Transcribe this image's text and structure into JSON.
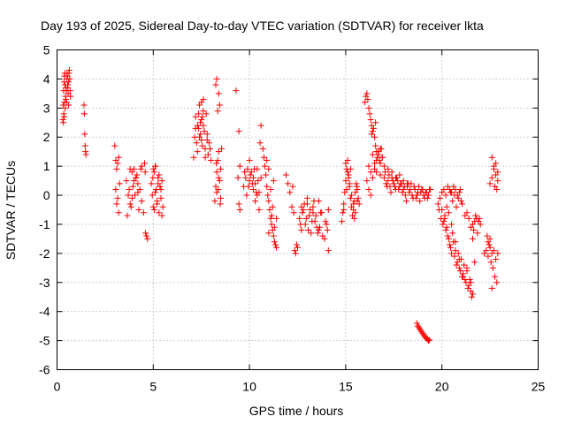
{
  "chart_data": {
    "type": "scatter",
    "title": "Day 193 of 2025, Sidereal Day-to-day VTEC variation (SDTVAR) for receiver lkta",
    "xlabel": "GPS time / hours",
    "ylabel": "SDTVAR / TECUs",
    "xlim": [
      0,
      25
    ],
    "ylim": [
      -6,
      5
    ],
    "xticks": [
      "0",
      "5",
      "10",
      "15",
      "20",
      "25"
    ],
    "yticks": [
      "-6",
      "-5",
      "-4",
      "-3",
      "-2",
      "-1",
      "0",
      "1",
      "2",
      "3",
      "4",
      "5"
    ],
    "grid": true,
    "marker": "+",
    "color": "#ff0000",
    "series": [
      {
        "name": "lkta",
        "x": [
          0.3,
          0.32,
          0.34,
          0.36,
          0.38,
          0.4,
          0.42,
          0.44,
          0.46,
          0.48,
          0.5,
          0.52,
          0.54,
          0.56,
          0.58,
          0.6,
          0.62,
          0.64,
          0.66,
          0.68,
          0.7,
          0.35,
          0.38,
          0.42,
          0.46,
          0.5,
          0.55,
          0.6,
          0.33,
          0.37,
          1.4,
          1.42,
          1.44,
          1.46,
          1.48,
          1.5,
          3.0,
          3.05,
          3.1,
          3.15,
          3.2,
          3.05,
          3.1,
          3.2,
          3.25,
          3.15,
          3.6,
          3.7,
          3.8,
          3.9,
          4.0,
          4.1,
          4.2,
          4.3,
          4.4,
          4.5,
          3.75,
          3.85,
          3.95,
          4.05,
          4.15,
          4.25,
          4.35,
          3.65,
          3.8,
          4.0,
          4.2,
          4.4,
          3.9,
          4.1,
          4.6,
          4.65,
          4.7,
          4.55,
          4.58,
          4.9,
          4.95,
          5.0,
          5.05,
          5.1,
          5.15,
          5.2,
          5.25,
          5.3,
          5.35,
          5.4,
          5.45,
          5.5,
          5.0,
          5.1,
          5.2,
          5.3,
          5.4,
          5.05,
          5.25,
          5.45,
          4.98,
          5.12,
          7.1,
          7.15,
          7.2,
          7.25,
          7.3,
          7.35,
          7.4,
          7.45,
          7.5,
          7.55,
          7.6,
          7.65,
          7.7,
          7.75,
          7.8,
          7.85,
          7.9,
          7.95,
          8.0,
          7.3,
          7.4,
          7.5,
          7.6,
          7.7,
          7.2,
          7.8,
          7.5,
          7.6,
          7.45,
          7.55,
          7.35,
          8.2,
          8.25,
          8.3,
          8.35,
          8.4,
          8.45,
          8.5,
          8.3,
          8.4,
          8.25,
          8.35,
          8.45,
          8.5,
          8.55,
          8.3,
          8.4,
          8.28,
          8.38,
          8.48,
          9.3,
          9.45,
          9.5,
          9.4,
          9.5,
          9.45,
          9.7,
          9.8,
          9.9,
          10.0,
          10.1,
          10.2,
          10.3,
          10.4,
          10.5,
          10.6,
          9.85,
          9.95,
          10.05,
          10.15,
          10.25,
          10.35,
          10.45,
          9.75,
          10.0,
          10.2,
          10.4,
          10.3,
          10.5,
          10.6,
          10.55,
          10.7,
          10.8,
          10.9,
          11.0,
          11.1,
          11.2,
          11.3,
          11.4,
          10.75,
          10.85,
          10.95,
          11.05,
          11.15,
          11.25,
          11.35,
          11.0,
          11.1,
          11.2,
          11.3,
          11.15,
          11.25,
          10.9,
          11.0,
          11.4,
          11.9,
          12.0,
          12.1,
          12.2,
          12.3,
          12.35,
          12.4,
          12.45,
          12.5,
          12.25,
          12.6,
          12.7,
          12.8,
          12.9,
          13.0,
          13.1,
          13.2,
          13.3,
          13.4,
          13.5,
          13.6,
          13.7,
          13.8,
          12.65,
          12.75,
          12.85,
          12.95,
          13.05,
          13.15,
          13.25,
          13.35,
          13.45,
          13.55,
          13.65,
          13.75,
          13.9,
          14.0,
          14.1,
          14.05,
          14.1,
          13.95,
          12.7,
          13.0,
          13.3,
          13.6,
          14.8,
          14.85,
          14.9,
          14.95,
          15.0,
          15.05,
          15.1,
          15.15,
          15.2,
          15.25,
          15.3,
          15.35,
          15.4,
          15.45,
          15.5,
          15.55,
          15.6,
          15.65,
          15.7,
          15.0,
          15.1,
          15.2,
          15.3,
          15.4,
          15.5,
          15.6,
          14.9,
          15.05,
          15.15,
          15.25,
          15.45,
          15.58,
          16.0,
          16.05,
          16.1,
          16.15,
          16.2,
          16.25,
          16.3,
          16.35,
          16.4,
          16.45,
          16.5,
          16.55,
          16.6,
          16.65,
          16.7,
          16.75,
          16.8,
          16.85,
          16.9,
          16.2,
          16.3,
          16.4,
          16.5,
          16.6,
          16.7,
          16.8,
          16.1,
          16.2,
          16.3,
          16.4,
          16.5,
          16.6,
          16.7,
          16.8,
          16.9,
          16.35,
          16.55,
          17.0,
          17.1,
          17.2,
          17.3,
          17.4,
          17.5,
          17.6,
          17.7,
          17.8,
          17.9,
          18.0,
          18.1,
          18.2,
          18.3,
          18.4,
          18.5,
          18.6,
          18.7,
          18.8,
          18.9,
          19.0,
          19.1,
          19.2,
          19.3,
          19.4,
          17.05,
          17.15,
          17.25,
          17.35,
          17.45,
          17.55,
          17.65,
          17.75,
          17.85,
          17.95,
          18.05,
          18.15,
          18.25,
          18.35,
          18.45,
          18.55,
          18.65,
          18.75,
          18.85,
          18.95,
          19.05,
          19.15,
          19.25,
          19.35,
          17.0,
          17.2,
          17.4,
          17.6,
          17.8,
          18.0,
          18.2,
          18.7,
          18.75,
          18.8,
          18.85,
          18.9,
          18.95,
          19.0,
          19.05,
          19.1,
          19.15,
          19.2,
          19.25,
          19.3,
          19.35,
          19.8,
          19.9,
          20.0,
          20.1,
          20.2,
          20.3,
          20.4,
          20.5,
          20.6,
          20.7,
          20.8,
          20.9,
          21.0,
          19.85,
          19.95,
          20.05,
          20.15,
          20.25,
          20.35,
          20.45,
          20.55,
          20.65,
          20.75,
          20.85,
          20.95,
          21.05,
          20.0,
          20.1,
          20.2,
          20.3,
          20.4,
          20.5,
          20.6,
          20.7,
          20.8,
          20.9,
          21.0,
          21.1,
          21.2,
          21.3,
          21.4,
          21.5,
          21.6,
          20.15,
          20.25,
          20.35,
          20.45,
          20.55,
          20.65,
          20.75,
          20.85,
          20.95,
          21.05,
          21.15,
          21.25,
          21.35,
          21.45,
          21.55,
          20.5,
          20.7,
          20.9,
          21.1,
          21.3,
          21.5,
          21.6,
          21.7,
          21.8,
          21.9,
          22.0,
          21.65,
          21.75,
          21.85,
          21.95,
          21.2,
          21.3,
          21.4,
          21.5,
          21.6,
          21.7,
          22.2,
          22.3,
          22.4,
          22.5,
          22.6,
          22.7,
          22.8,
          22.9,
          22.35,
          22.45,
          22.55,
          22.65,
          22.75,
          22.85,
          22.5,
          22.6,
          22.7,
          22.8,
          22.9,
          22.6,
          22.7,
          22.8,
          22.9,
          22.75,
          22.85,
          22.4,
          22.5,
          22.6
        ],
        "y": [
          2.6,
          3.1,
          3.6,
          3.9,
          4.1,
          4.2,
          3.8,
          3.4,
          3.3,
          3.6,
          4.0,
          4.2,
          4.1,
          3.7,
          3.5,
          3.9,
          4.2,
          4.3,
          4.0,
          3.6,
          3.4,
          2.8,
          3.2,
          3.0,
          3.7,
          3.2,
          3.8,
          3.1,
          2.5,
          2.7,
          3.1,
          2.8,
          2.1,
          1.7,
          1.5,
          1.4,
          1.7,
          1.2,
          0.9,
          1.1,
          1.3,
          0.2,
          -0.3,
          -0.6,
          0.4,
          -0.1,
          0.5,
          0.0,
          -0.3,
          0.8,
          0.9,
          0.6,
          0.4,
          0.2,
          -0.2,
          -0.6,
          0.2,
          -0.4,
          0.3,
          0.0,
          0.7,
          -0.5,
          0.9,
          -0.7,
          0.9,
          0.5,
          0.1,
          1.0,
          -0.1,
          0.6,
          -1.3,
          -1.4,
          -1.5,
          1.1,
          0.8,
          0.4,
          0.0,
          -0.4,
          0.8,
          1.0,
          0.2,
          -0.3,
          0.6,
          -0.6,
          0.3,
          -0.1,
          0.5,
          -0.4,
          0.9,
          0.1,
          -0.2,
          0.7,
          0.2,
          -0.5,
          0.4,
          -0.7,
          0.6,
          1.0,
          1.3,
          2.0,
          2.3,
          1.8,
          2.4,
          2.8,
          3.1,
          2.5,
          1.9,
          2.7,
          3.3,
          2.2,
          1.6,
          2.8,
          2.1,
          1.4,
          1.8,
          1.6,
          1.2,
          1.5,
          2.0,
          2.6,
          2.4,
          1.3,
          2.7,
          1.9,
          3.2,
          2.9,
          2.1,
          1.7,
          2.3,
          -0.2,
          0.3,
          0.8,
          1.2,
          1.5,
          0.5,
          -0.1,
          4.0,
          3.5,
          3.8,
          2.9,
          3.1,
          0.9,
          1.6,
          0.1,
          0.6,
          1.1,
          0.2,
          -0.3,
          3.6,
          2.2,
          1.0,
          0.6,
          -0.5,
          -0.3,
          0.3,
          0.6,
          0.9,
          0.5,
          0.8,
          0.2,
          0.4,
          0.9,
          0.1,
          0.6,
          0.0,
          0.3,
          0.7,
          0.4,
          0.9,
          0.1,
          0.5,
          0.8,
          1.2,
          0.6,
          0.0,
          -0.2,
          -0.5,
          2.4,
          1.8,
          1.6,
          1.0,
          0.3,
          -0.2,
          -0.8,
          -1.2,
          -1.6,
          -1.8,
          1.3,
          0.7,
          0.0,
          -0.5,
          -1.0,
          -1.4,
          -1.7,
          0.9,
          0.2,
          -0.4,
          -1.1,
          -0.7,
          0.5,
          1.2,
          -1.3,
          -0.8,
          0.7,
          0.4,
          0.1,
          -0.4,
          -0.6,
          -1.9,
          -2.0,
          -1.7,
          -1.8,
          0.3,
          -0.8,
          -1.2,
          -0.5,
          -1.0,
          -0.3,
          -0.7,
          -1.3,
          -0.4,
          -0.9,
          -1.1,
          -0.2,
          -0.6,
          -1.4,
          -1.0,
          -0.6,
          -0.3,
          -0.8,
          -1.2,
          -0.5,
          -0.9,
          -0.2,
          -0.7,
          -1.3,
          -1.1,
          -0.6,
          -1.5,
          -1.0,
          -1.9,
          -1.2,
          -0.5,
          -0.9,
          -0.4,
          -0.1,
          -0.6,
          -1.2,
          -0.9,
          -0.6,
          -0.3,
          0.1,
          0.5,
          0.9,
          1.2,
          0.7,
          0.3,
          -0.1,
          -0.4,
          -0.7,
          -0.5,
          -0.2,
          0.1,
          0.4,
          0.2,
          -0.1,
          -0.3,
          1.1,
          0.8,
          0.4,
          0.0,
          -0.3,
          -0.6,
          -0.2,
          -0.5,
          0.2,
          0.6,
          0.9,
          -0.8,
          0.3,
          3.2,
          3.4,
          3.5,
          3.3,
          3.0,
          2.8,
          2.6,
          2.4,
          2.2,
          2.3,
          2.0,
          1.7,
          1.5,
          1.3,
          1.4,
          1.2,
          1.1,
          1.6,
          1.3,
          1.0,
          0.8,
          0.6,
          0.9,
          1.2,
          1.5,
          0.7,
          0.5,
          0.2,
          0.0,
          1.4,
          1.1,
          0.8,
          1.5,
          1.6,
          1.3,
          2.1,
          2.5,
          0.6,
          0.4,
          0.5,
          0.3,
          0.6,
          0.4,
          0.2,
          0.5,
          0.3,
          0.4,
          0.2,
          0.0,
          0.3,
          0.1,
          0.4,
          -0.1,
          0.2,
          0.0,
          0.3,
          0.1,
          0.2,
          -0.1,
          0.1,
          0.0,
          0.2,
          0.8,
          0.3,
          0.7,
          0.1,
          0.5,
          0.3,
          0.6,
          0.2,
          0.4,
          0.1,
          0.3,
          -0.2,
          0.4,
          0.2,
          0.0,
          0.3,
          -0.1,
          0.1,
          -0.2,
          0.2,
          0.0,
          0.1,
          -0.1,
          0.2,
          1.0,
          0.9,
          0.8,
          0.6,
          0.7,
          0.5,
          0.4,
          -4.4,
          -4.5,
          -4.55,
          -4.6,
          -4.65,
          -4.7,
          -4.75,
          -4.8,
          -4.85,
          -4.9,
          -4.92,
          -4.95,
          -5.0,
          -4.98,
          -0.3,
          -0.1,
          0.1,
          0.2,
          0.0,
          0.3,
          0.2,
          0.1,
          0.3,
          0.2,
          0.0,
          0.1,
          -0.2,
          -0.5,
          -0.8,
          -1.0,
          -0.7,
          -0.4,
          -0.6,
          0.1,
          -0.2,
          0.0,
          -0.4,
          -0.1,
          0.2,
          -0.3,
          -0.5,
          -0.9,
          -1.2,
          -1.4,
          -1.7,
          -2.0,
          -1.6,
          -1.9,
          -2.3,
          -2.5,
          -2.2,
          -2.7,
          -2.9,
          -2.6,
          -3.1,
          -3.3,
          -3.4,
          -0.8,
          -1.1,
          -1.5,
          -1.8,
          -1.3,
          -2.1,
          -2.4,
          -2.0,
          -2.6,
          -2.8,
          -2.4,
          -3.0,
          -3.2,
          -2.9,
          -3.5,
          -1.0,
          -1.6,
          -2.2,
          -2.8,
          -2.5,
          -3.0,
          -1.0,
          -0.9,
          -0.8,
          -0.9,
          -1.0,
          -1.2,
          -0.7,
          -1.3,
          -0.8,
          -0.7,
          -0.6,
          -0.8,
          -1.1,
          -1.5,
          -2.3,
          -2.0,
          -1.9,
          -2.1,
          -1.8,
          -2.0,
          -1.9,
          -2.2,
          -2.0,
          -1.4,
          -1.7,
          -2.3,
          -2.5,
          -2.8,
          -3.0,
          0.4,
          0.6,
          0.9,
          1.1,
          0.8,
          1.3,
          1.0,
          0.7,
          0.5,
          0.3,
          0.2,
          -1.6,
          -1.5,
          -3.2
        ]
      }
    ]
  }
}
